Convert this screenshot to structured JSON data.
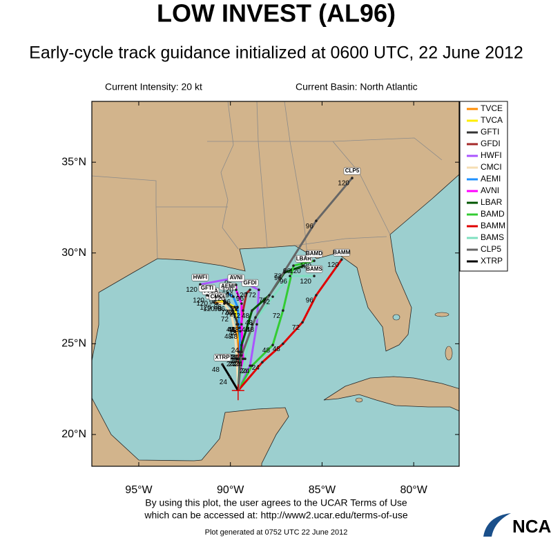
{
  "chart_data": {
    "type": "line",
    "title": "LOW INVEST (AL96)",
    "subtitle": "Early-cycle track guidance initialized at 0600 UTC, 22 June 2012",
    "intensity": "Current Intensity: 20 kt",
    "basin": "Current Basin: North Atlantic",
    "xlim": [
      -97.56,
      -77.52
    ],
    "ylim": [
      18.25,
      38.35
    ],
    "xticks": [
      {
        "value": -95,
        "label": "95°W"
      },
      {
        "value": -90,
        "label": "90°W"
      },
      {
        "value": -85,
        "label": "85°W"
      },
      {
        "value": -80,
        "label": "80°W"
      }
    ],
    "yticks": [
      {
        "value": 20,
        "label": "20°N"
      },
      {
        "value": 25,
        "label": "25°N"
      },
      {
        "value": 30,
        "label": "30°N"
      },
      {
        "value": 35,
        "label": "35°N"
      }
    ],
    "legend": "right",
    "point_labels": [
      null,
      24,
      48,
      72,
      96,
      120
    ],
    "series": [
      {
        "name": "TVCE",
        "color": "#ff8c00",
        "x": [
          -89.58,
          -89.54,
          -89.65,
          -89.69,
          -90.14,
          -90.89
        ],
        "values": [
          22.42,
          24.55,
          26.07,
          26.91,
          27.21,
          27.28
        ]
      },
      {
        "name": "TVCA",
        "color": "#ffee00",
        "x": [
          -89.58,
          -89.46,
          -89.58,
          -89.76,
          -90.33,
          -91.08
        ],
        "values": [
          22.42,
          24.55,
          26.07,
          27.02,
          27.32,
          27.51
        ]
      },
      {
        "name": "GFTI",
        "color": "#333333",
        "x": [
          -89.58,
          -89.39,
          -89.58,
          -89.95,
          -90.59,
          -91.27
        ],
        "values": [
          22.42,
          24.55,
          26.07,
          27.02,
          27.59,
          27.67
        ]
      },
      {
        "name": "GFDI",
        "color": "#a52a2a",
        "x": [
          -89.58,
          -89.54,
          -89.46,
          -89.31,
          -89.12,
          -88.93
        ],
        "values": [
          22.42,
          24.17,
          25.69,
          26.83,
          27.78,
          27.97
        ]
      },
      {
        "name": "HWFI",
        "color": "#aa55ff",
        "x": [
          -89.58,
          -88.93,
          -88.56,
          -88.45,
          -89.76,
          -91.65
        ],
        "values": [
          22.42,
          23.79,
          26.07,
          27.97,
          28.62,
          28.27
        ]
      },
      {
        "name": "CMCI",
        "color": "#f5deb3",
        "x": [
          -89.58,
          -89.65,
          -89.76,
          -89.95,
          -90.33,
          -90.71
        ],
        "values": [
          22.42,
          24.17,
          25.69,
          26.64,
          27.21,
          27.21
        ]
      },
      {
        "name": "AEMI",
        "color": "#1e90ff",
        "x": [
          -89.58,
          -89.46,
          -89.5,
          -89.61,
          -89.84,
          -90.14
        ],
        "values": [
          22.42,
          24.36,
          25.88,
          27.02,
          27.59,
          27.78
        ]
      },
      {
        "name": "AVNI",
        "color": "#ff00ff",
        "x": [
          -89.58,
          -89.31,
          -89.39,
          -89.39,
          -89.69,
          -89.69
        ],
        "values": [
          22.42,
          24.17,
          26.07,
          27.21,
          27.97,
          28.24
        ]
      },
      {
        "name": "LBAR",
        "color": "#005500",
        "x": [
          -89.58,
          -89.39,
          -88.82,
          -87.88,
          -87.05,
          -86.0
        ],
        "values": [
          22.42,
          24.93,
          26.83,
          27.67,
          28.92,
          29.3
        ]
      },
      {
        "name": "BAMD",
        "color": "#33cc33",
        "x": [
          -89.58,
          -88.82,
          -87.69,
          -87.13,
          -86.56,
          -85.43
        ],
        "values": [
          22.42,
          23.79,
          24.93,
          26.83,
          29.3,
          29.57
        ]
      },
      {
        "name": "BAMM",
        "color": "#e00000",
        "x": [
          -89.58,
          -88.26,
          -87.13,
          -86.07,
          -85.32,
          -83.93
        ],
        "values": [
          22.42,
          23.98,
          25.0,
          26.18,
          27.67,
          29.64
        ]
      },
      {
        "name": "BAMS",
        "color": "#7fe0c0",
        "x": [
          -89.58,
          -89.2,
          -88.82,
          -87.69,
          -86.75,
          -85.43
        ],
        "values": [
          22.42,
          24.17,
          26.07,
          27.59,
          28.73,
          28.73
        ]
      },
      {
        "name": "CLP5",
        "color": "#666666",
        "x": [
          -89.58,
          -89.39,
          -88.63,
          -87.05,
          -85.32,
          -83.36
        ],
        "values": [
          22.42,
          24.36,
          26.45,
          29.0,
          31.77,
          34.13
        ]
      },
      {
        "name": "XTRP",
        "color": "#000000",
        "x": [
          -89.58,
          -90.03,
          -90.44
        ],
        "values": [
          22.42,
          23.18,
          23.86
        ]
      }
    ]
  },
  "footer": {
    "terms": "By using this plot, the user agrees to the UCAR Terms of Use",
    "url": "which can be accessed at: http://www2.ucar.edu/terms-of-use",
    "generated": "Plot generated at 0752 UTC   22 June 2012",
    "logo": "NCAR"
  }
}
